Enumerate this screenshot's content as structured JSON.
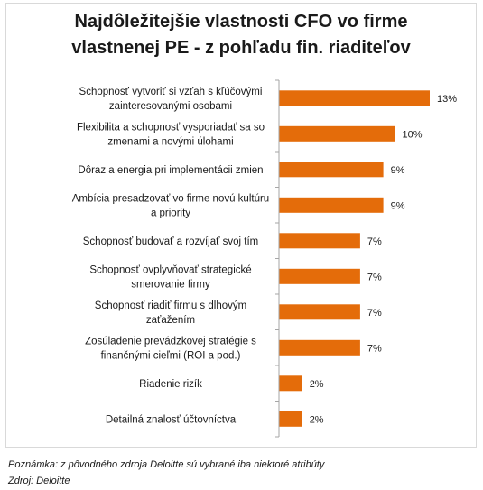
{
  "title": {
    "line1": "Najdôležitejšie vlastnosti CFO vo firme",
    "line2": "vlastnenej PE - z pohľadu fin. riaditeľov"
  },
  "chart_data": {
    "type": "bar",
    "orientation": "horizontal",
    "categories": [
      [
        "Schopnosť vytvoriť si vzťah s kľúčovými",
        "zainteresovanými osobami"
      ],
      [
        "Flexibilita a schopnosť vysporiadať sa so",
        "zmenami a novými úlohami"
      ],
      [
        "Dôraz a energia pri implementácii zmien"
      ],
      [
        "Ambícia presadzovať vo firme novú kultúru",
        "a priority"
      ],
      [
        "Schopnosť budovať a rozvíjať svoj tím"
      ],
      [
        "Schopnosť ovplyvňovať strategické",
        "smerovanie firmy"
      ],
      [
        "Schopnosť riadiť firmu s dlhovým",
        "zaťažením"
      ],
      [
        "Zosúladenie prevádzkovej stratégie s",
        "finančnými cieľmi (ROI a pod.)"
      ],
      [
        "Riadenie rizík"
      ],
      [
        "Detailná znalosť účtovníctva"
      ]
    ],
    "values": [
      13,
      10,
      9,
      9,
      7,
      7,
      7,
      7,
      2,
      2
    ],
    "value_labels": [
      "13%",
      "10%",
      "9%",
      "9%",
      "7%",
      "7%",
      "7%",
      "7%",
      "2%",
      "2%"
    ],
    "bar_color": "#e46c0a",
    "axis_color": "#a6a6a6",
    "xlim": [
      0,
      13
    ],
    "grid": false,
    "legend": "none"
  },
  "notes": {
    "note": "Poznámka: z pôvodného zdroja Deloitte sú vybrané iba niektoré atribúty",
    "source": "Zdroj: Deloitte"
  }
}
